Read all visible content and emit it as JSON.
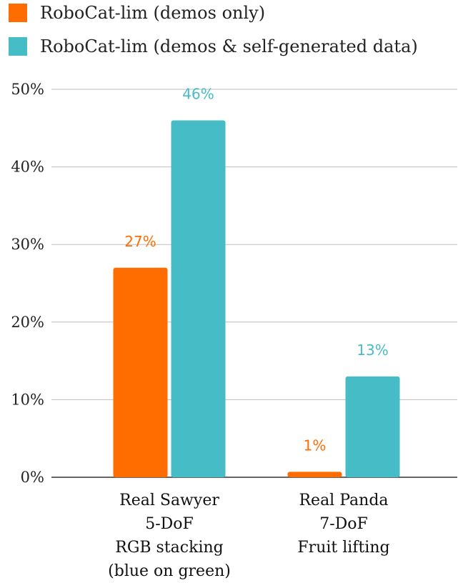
{
  "chart_data": {
    "type": "bar",
    "categories": [
      [
        "Real Sawyer",
        "5-DoF",
        "RGB stacking",
        "(blue on green)"
      ],
      [
        "Real Panda",
        "7-DoF",
        "Fruit lifting"
      ]
    ],
    "series": [
      {
        "name": "RoboCat-lim (demos only)",
        "color": "#ff6d01",
        "values": [
          27,
          0.7
        ],
        "labels": [
          "27%",
          "1%"
        ]
      },
      {
        "name": "RoboCat-lim (demos & self-generated data)",
        "color": "#46bdc6",
        "values": [
          46,
          13
        ],
        "labels": [
          "46%",
          "13%"
        ]
      }
    ],
    "ylim": [
      0,
      50
    ],
    "yticks": [
      {
        "value": 0,
        "label": "0%"
      },
      {
        "value": 10,
        "label": "10%"
      },
      {
        "value": 20,
        "label": "20%"
      },
      {
        "value": 30,
        "label": "30%"
      },
      {
        "value": 40,
        "label": "40%"
      },
      {
        "value": 50,
        "label": "50%"
      }
    ],
    "grid": true,
    "legend": "top-left"
  }
}
